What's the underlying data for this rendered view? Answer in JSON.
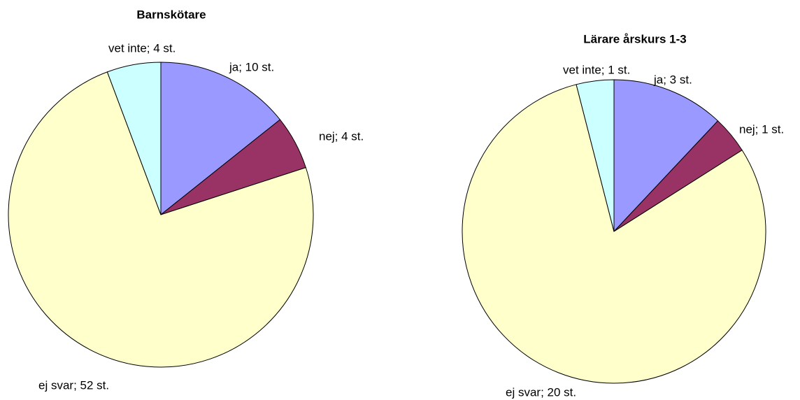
{
  "chart_data": [
    {
      "type": "pie",
      "title": "Barnskötare",
      "values": [
        10,
        4,
        52,
        4
      ],
      "value_labels": [
        "ja; 10 st.",
        "nej; 4 st.",
        "ej svar; 52 st.",
        "vet inte; 4 st."
      ],
      "colors": [
        "#9999ff",
        "#993366",
        "#ffffcc",
        "#ccffff"
      ]
    },
    {
      "type": "pie",
      "title": "Lärare årskurs 1-3",
      "values": [
        3,
        1,
        20,
        1
      ],
      "value_labels": [
        "ja; 3 st.",
        "nej; 1 st.",
        "ej svar; 20 st.",
        "vet inte; 1 st."
      ],
      "colors": [
        "#9999ff",
        "#993366",
        "#ffffcc",
        "#ccffff"
      ]
    }
  ]
}
